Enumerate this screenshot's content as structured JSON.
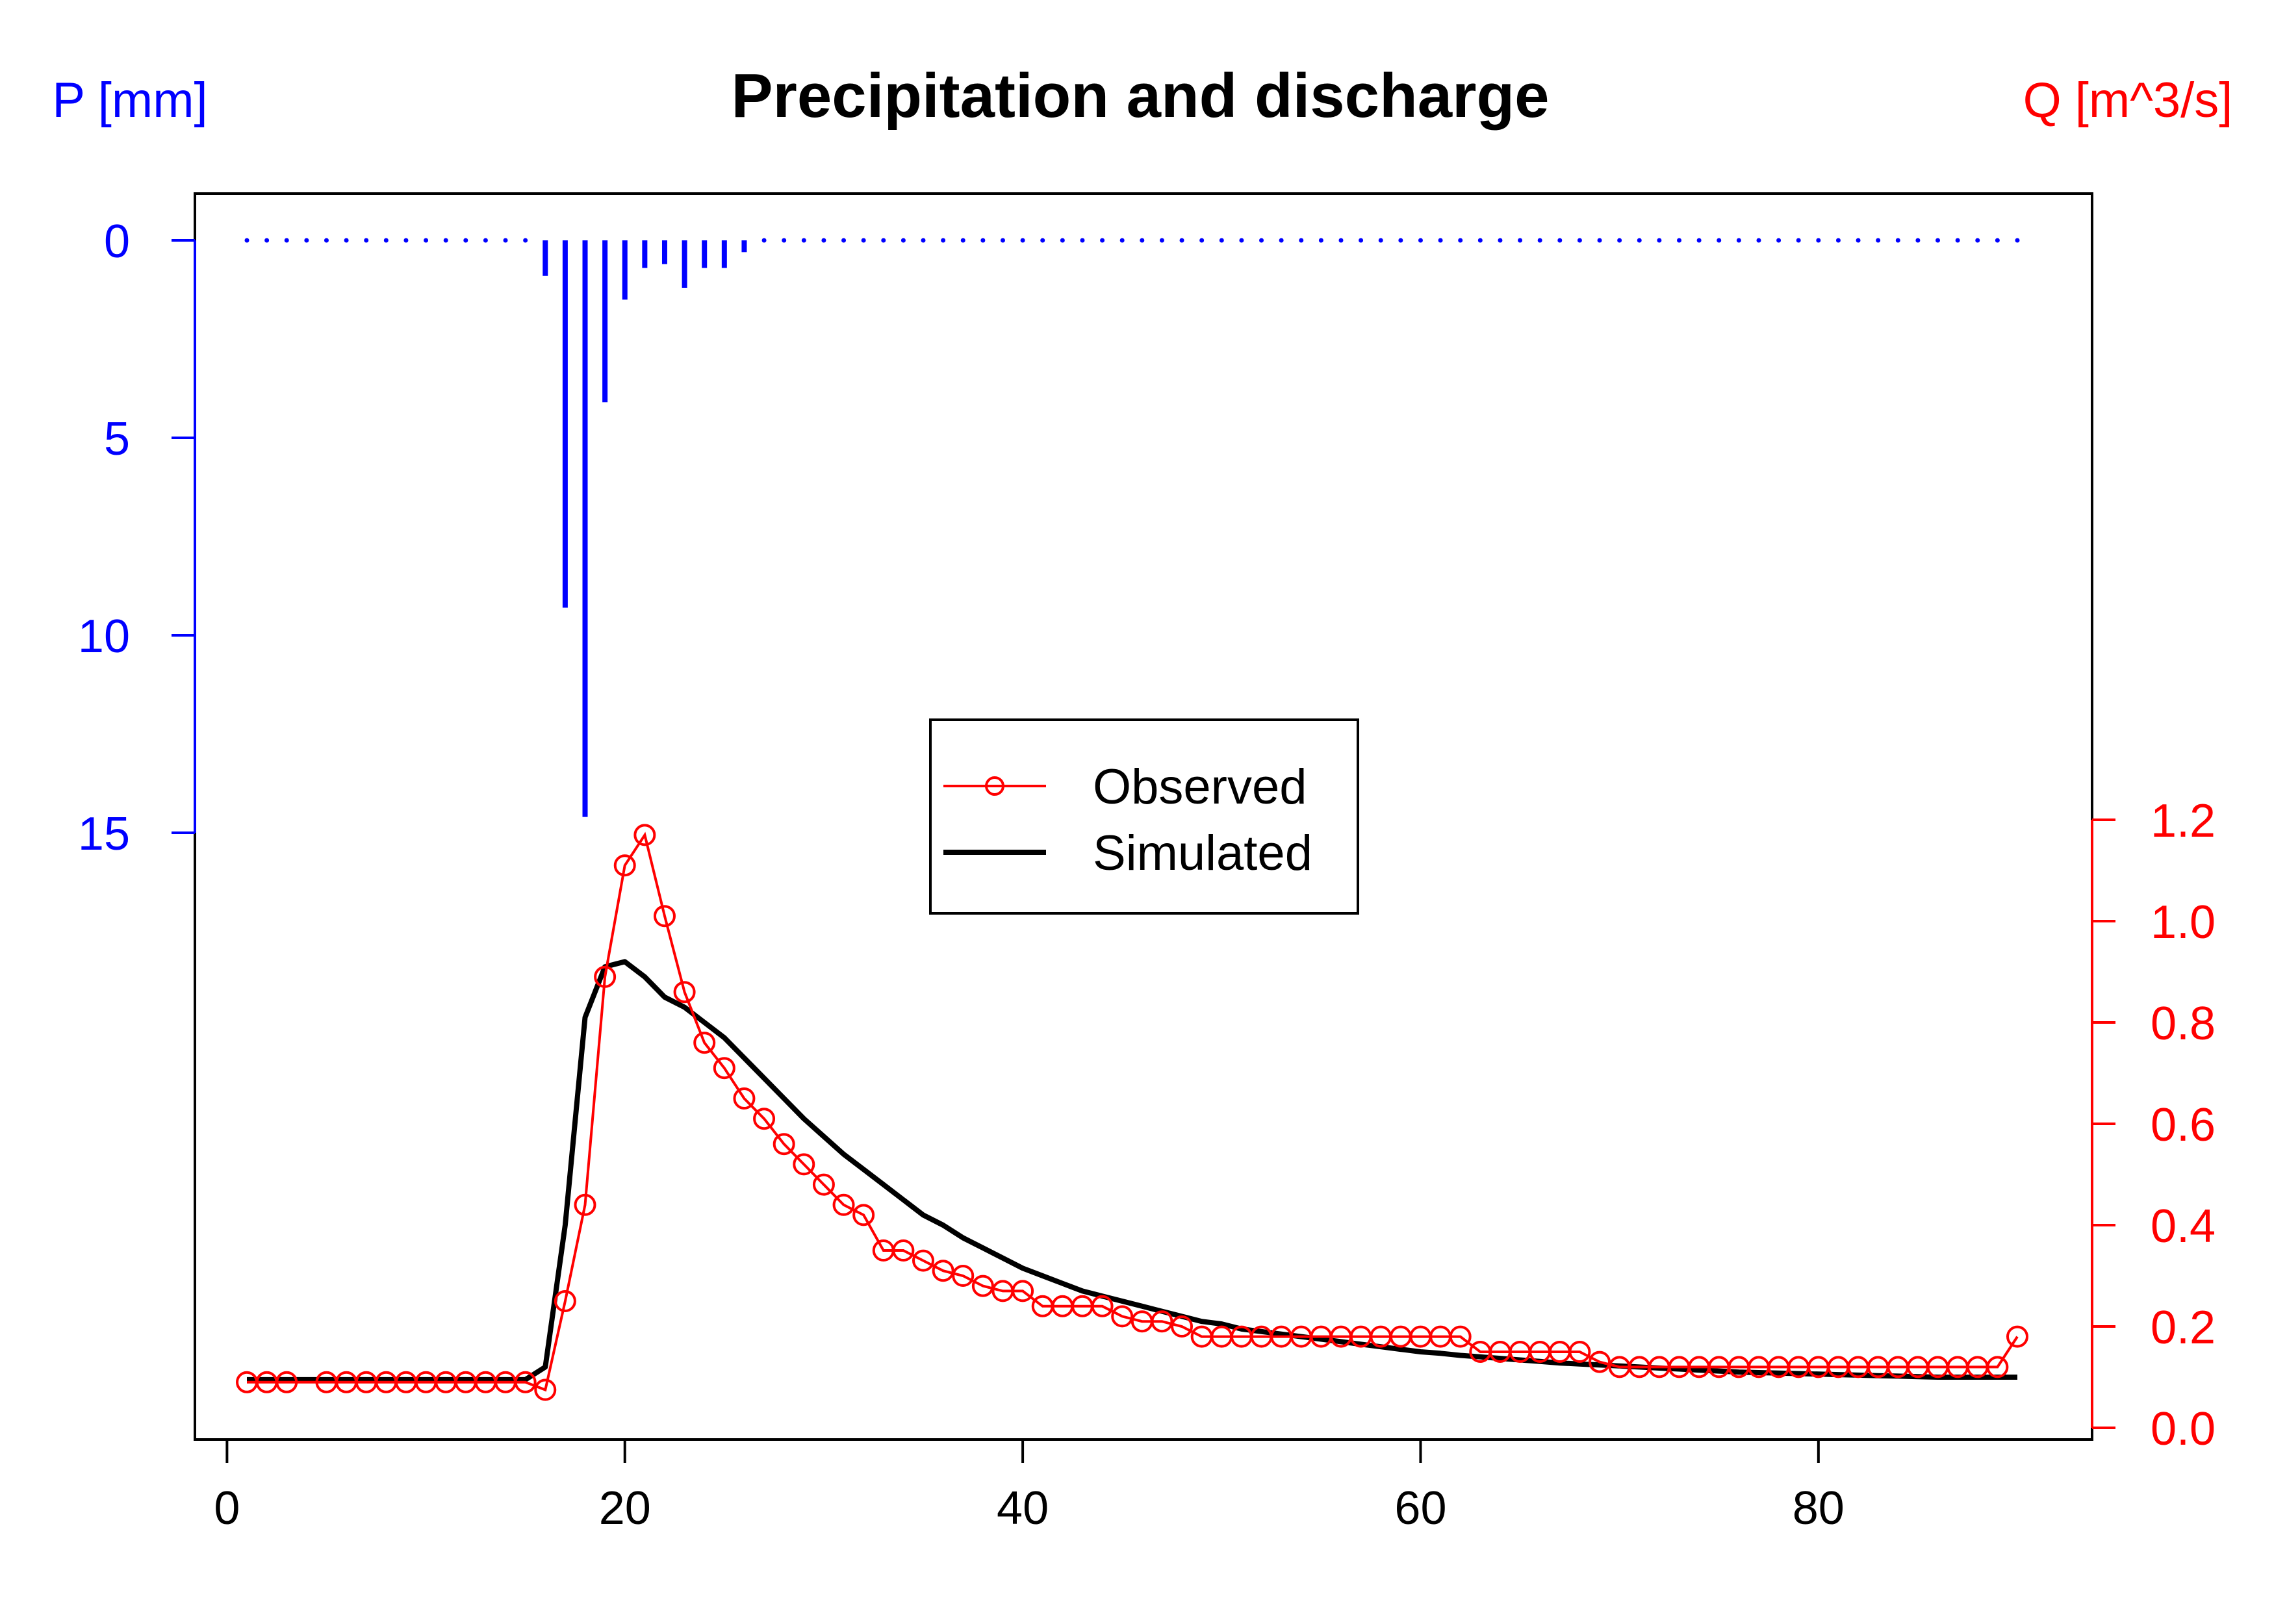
{
  "chart_data": {
    "type": "line",
    "title": "Precipitation and discharge",
    "left_axis_label": "P [mm]",
    "right_axis_label": "Q [m^3/s]",
    "x_range": [
      1,
      90
    ],
    "x_ticks": [
      0,
      20,
      40,
      60,
      80
    ],
    "p_range_reversed": [
      0,
      15
    ],
    "p_ticks": [
      0,
      5,
      10,
      15
    ],
    "q_range": [
      0,
      1.2
    ],
    "q_ticks": [
      "0.0",
      "0.2",
      "0.4",
      "0.6",
      "0.8",
      "1.0",
      "1.2"
    ],
    "colors": {
      "precip": "#0000ff",
      "observed": "#ff0000",
      "simulated": "#000000",
      "axis": "#000000"
    },
    "legend_position": "center",
    "precipitation": {
      "name": "P",
      "x": [
        1,
        2,
        3,
        4,
        5,
        6,
        7,
        8,
        9,
        10,
        11,
        12,
        13,
        14,
        15,
        16,
        17,
        18,
        19,
        20,
        21,
        22,
        23,
        24,
        25,
        26,
        27,
        28,
        29,
        30,
        31,
        32,
        33,
        34,
        35,
        36,
        37,
        38,
        39,
        40,
        41,
        42,
        43,
        44,
        45,
        46,
        47,
        48,
        49,
        50,
        51,
        52,
        53,
        54,
        55,
        56,
        57,
        58,
        59,
        60,
        61,
        62,
        63,
        64,
        65,
        66,
        67,
        68,
        69,
        70,
        71,
        72,
        73,
        74,
        75,
        76,
        77,
        78,
        79,
        80,
        81,
        82,
        83,
        84,
        85,
        86,
        87,
        88,
        89,
        90
      ],
      "values": [
        0,
        0,
        0,
        0,
        0,
        0,
        0,
        0,
        0,
        0,
        0,
        0,
        0,
        0,
        0,
        0.9,
        9.3,
        14.6,
        4.1,
        1.5,
        0.7,
        0.6,
        1.2,
        0.7,
        0.7,
        0.3,
        0,
        0,
        0,
        0,
        0,
        0,
        0,
        0,
        0,
        0,
        0,
        0,
        0,
        0,
        0,
        0,
        0,
        0,
        0,
        0,
        0,
        0,
        0,
        0,
        0,
        0,
        0,
        0,
        0,
        0,
        0,
        0,
        0,
        0,
        0,
        0,
        0,
        0,
        0,
        0,
        0,
        0,
        0,
        0,
        0,
        0,
        0,
        0,
        0,
        0,
        0,
        0,
        0,
        0,
        0,
        0,
        0,
        0,
        0,
        0,
        0,
        0,
        0,
        0
      ]
    },
    "series": [
      {
        "name": "Observed",
        "x": [
          1,
          2,
          3,
          5,
          6,
          7,
          8,
          9,
          10,
          11,
          12,
          13,
          14,
          15,
          16,
          17,
          18,
          19,
          20,
          21,
          22,
          23,
          24,
          25,
          26,
          27,
          28,
          29,
          30,
          31,
          32,
          33,
          34,
          35,
          36,
          37,
          38,
          39,
          40,
          41,
          42,
          43,
          44,
          45,
          46,
          47,
          48,
          49,
          50,
          51,
          52,
          53,
          54,
          55,
          56,
          57,
          58,
          59,
          60,
          61,
          62,
          63,
          64,
          65,
          66,
          67,
          68,
          69,
          70,
          71,
          72,
          73,
          74,
          75,
          76,
          77,
          78,
          79,
          80,
          81,
          82,
          83,
          84,
          85,
          86,
          87,
          88,
          89,
          90
        ],
        "values": [
          0.09,
          0.09,
          0.09,
          0.09,
          0.09,
          0.09,
          0.09,
          0.09,
          0.09,
          0.09,
          0.09,
          0.09,
          0.09,
          0.09,
          0.075,
          0.25,
          0.44,
          0.89,
          1.11,
          1.17,
          1.01,
          0.86,
          0.76,
          0.71,
          0.65,
          0.61,
          0.56,
          0.52,
          0.48,
          0.44,
          0.42,
          0.35,
          0.35,
          0.33,
          0.31,
          0.3,
          0.28,
          0.27,
          0.27,
          0.24,
          0.24,
          0.24,
          0.24,
          0.22,
          0.21,
          0.21,
          0.2,
          0.18,
          0.18,
          0.18,
          0.18,
          0.18,
          0.18,
          0.18,
          0.18,
          0.18,
          0.18,
          0.18,
          0.18,
          0.18,
          0.18,
          0.15,
          0.15,
          0.15,
          0.15,
          0.15,
          0.15,
          0.13,
          0.12,
          0.12,
          0.12,
          0.12,
          0.12,
          0.12,
          0.12,
          0.12,
          0.12,
          0.12,
          0.12,
          0.12,
          0.12,
          0.12,
          0.12,
          0.12,
          0.12,
          0.12,
          0.12,
          0.12,
          0.18
        ]
      },
      {
        "name": "Simulated",
        "x": [
          1,
          2,
          3,
          4,
          5,
          6,
          7,
          8,
          9,
          10,
          11,
          12,
          13,
          14,
          15,
          16,
          17,
          18,
          19,
          20,
          21,
          22,
          23,
          24,
          25,
          26,
          27,
          28,
          29,
          30,
          31,
          32,
          33,
          34,
          35,
          36,
          37,
          38,
          39,
          40,
          41,
          42,
          43,
          44,
          45,
          46,
          47,
          48,
          49,
          50,
          51,
          52,
          53,
          54,
          55,
          56,
          57,
          58,
          59,
          60,
          61,
          62,
          63,
          64,
          65,
          66,
          67,
          68,
          69,
          70,
          71,
          72,
          73,
          74,
          75,
          76,
          77,
          78,
          79,
          80,
          81,
          82,
          83,
          84,
          85,
          86,
          87,
          88,
          89,
          90
        ],
        "values": [
          0.095,
          0.095,
          0.095,
          0.095,
          0.095,
          0.095,
          0.095,
          0.095,
          0.095,
          0.095,
          0.095,
          0.095,
          0.095,
          0.095,
          0.095,
          0.12,
          0.4,
          0.81,
          0.91,
          0.92,
          0.89,
          0.85,
          0.83,
          0.8,
          0.77,
          0.73,
          0.69,
          0.65,
          0.61,
          0.575,
          0.54,
          0.51,
          0.48,
          0.45,
          0.42,
          0.4,
          0.375,
          0.355,
          0.335,
          0.315,
          0.3,
          0.285,
          0.27,
          0.26,
          0.25,
          0.24,
          0.23,
          0.22,
          0.21,
          0.205,
          0.195,
          0.19,
          0.185,
          0.18,
          0.175,
          0.17,
          0.165,
          0.16,
          0.155,
          0.15,
          0.147,
          0.143,
          0.14,
          0.137,
          0.134,
          0.131,
          0.128,
          0.126,
          0.124,
          0.122,
          0.12,
          0.118,
          0.116,
          0.114,
          0.112,
          0.11,
          0.109,
          0.108,
          0.107,
          0.106,
          0.105,
          0.104,
          0.103,
          0.102,
          0.101,
          0.1,
          0.1,
          0.1,
          0.1,
          0.1
        ]
      }
    ]
  }
}
